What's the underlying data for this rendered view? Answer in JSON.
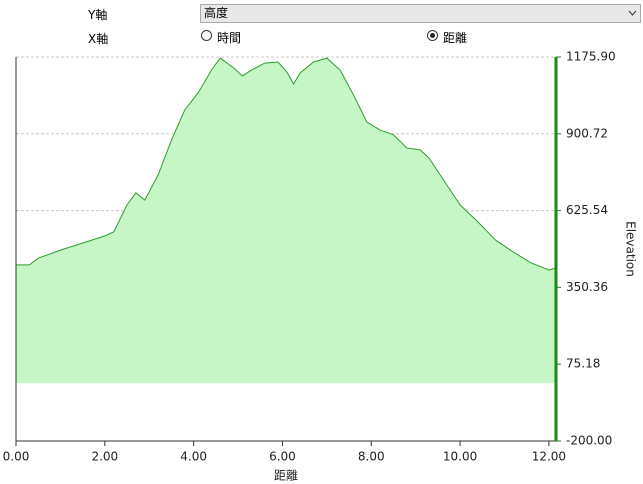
{
  "controls": {
    "y_axis_label": "Y軸",
    "y_axis_value": "高度",
    "x_axis_label": "X軸",
    "x_options": [
      "時間",
      "距離"
    ],
    "x_selected": 1
  },
  "chart_data": {
    "type": "area",
    "xlabel": "距離",
    "ylabel": "Elevation",
    "x": [
      0,
      0.3,
      0.5,
      1.0,
      1.5,
      2.0,
      2.2,
      2.5,
      2.7,
      2.9,
      3.2,
      3.5,
      3.8,
      4.1,
      4.4,
      4.6,
      4.9,
      5.1,
      5.3,
      5.6,
      5.9,
      6.1,
      6.25,
      6.4,
      6.7,
      7.0,
      7.3,
      7.6,
      7.9,
      8.2,
      8.5,
      8.8,
      9.1,
      9.3,
      9.6,
      10.0,
      10.4,
      10.8,
      11.2,
      11.6,
      12.0,
      12.16
    ],
    "series": [
      {
        "name": "Elevation",
        "color": "#2e9e2e",
        "fill": "#c6f5c6",
        "values": [
          431,
          431,
          455,
          484,
          509,
          535,
          549,
          646,
          689,
          663,
          753,
          878,
          986,
          1047,
          1129,
          1172,
          1137,
          1108,
          1129,
          1154,
          1158,
          1122,
          1079,
          1119,
          1158,
          1172,
          1129,
          1040,
          943,
          914,
          897,
          850,
          843,
          814,
          742,
          646,
          585,
          520,
          477,
          438,
          413,
          420
        ]
      }
    ],
    "fill_baseline": 7,
    "xlim": [
      0,
      12.16
    ],
    "ylim": [
      -200,
      1175.9
    ],
    "xticks": [
      {
        "value": 0,
        "label": "0.00"
      },
      {
        "value": 2,
        "label": "2.00"
      },
      {
        "value": 4,
        "label": "4.00"
      },
      {
        "value": 6,
        "label": "6.00"
      },
      {
        "value": 8,
        "label": "8.00"
      },
      {
        "value": 10,
        "label": "10.00"
      },
      {
        "value": 12,
        "label": "12.00"
      }
    ],
    "yticks": [
      {
        "value": -200,
        "label": "-200.00"
      },
      75.18,
      350.36,
      625.54,
      900.72,
      {
        "value": 1175.9,
        "label": "1175.90"
      }
    ],
    "y_axis_side": "right",
    "axis_color": "#1a8a1a",
    "grid": true
  }
}
